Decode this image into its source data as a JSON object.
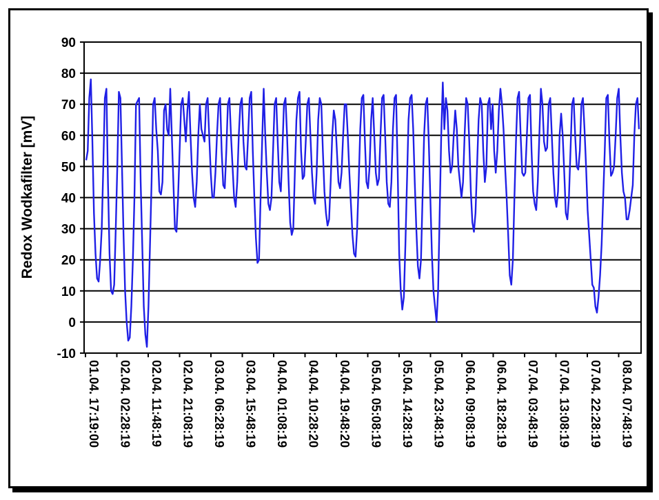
{
  "chart_data": {
    "type": "line",
    "title": "",
    "xlabel": "",
    "ylabel": "Redox Wodkafilter [mV]",
    "ylim": [
      -10,
      90
    ],
    "yticks": [
      -10,
      0,
      10,
      20,
      30,
      40,
      50,
      60,
      70,
      80,
      90
    ],
    "grid": true,
    "legend": "none",
    "colors": {
      "line": "#1f1fe6",
      "grid": "#000000",
      "frame": "#000000"
    },
    "x_tick_labels": [
      "01.04. 17:19:00",
      "02.04. 02:28:19",
      "02.04. 11:48:19",
      "02.04. 21:08:19",
      "03.04. 06:28:19",
      "03.04. 15:48:19",
      "04.04. 01:08:19",
      "04.04. 10:28:20",
      "04.04. 19:48:20",
      "05.04. 05:08:19",
      "05.04. 14:28:19",
      "05.04. 23:48:19",
      "06.04. 09:08:19",
      "06.04. 18:28:19",
      "07.04. 03:48:19",
      "07.04. 13:08:19",
      "07.04. 22:28:19",
      "08.04. 07:48:19"
    ],
    "series": [
      {
        "values": [
          52,
          55,
          72,
          78,
          58,
          35,
          22,
          14,
          13,
          20,
          30,
          50,
          72,
          75,
          45,
          22,
          10,
          9,
          12,
          30,
          50,
          74,
          72,
          50,
          28,
          10,
          0,
          -6,
          -5,
          5,
          20,
          40,
          70,
          71,
          72,
          45,
          25,
          5,
          -4,
          -8,
          5,
          25,
          45,
          70,
          72,
          62,
          55,
          42,
          41,
          45,
          68,
          70,
          62,
          60,
          75,
          60,
          45,
          30,
          29,
          40,
          55,
          70,
          72,
          65,
          58,
          68,
          74,
          60,
          48,
          40,
          37,
          45,
          60,
          70,
          62,
          60,
          58,
          70,
          72,
          60,
          48,
          40,
          40,
          48,
          60,
          70,
          72,
          55,
          44,
          43,
          55,
          70,
          72,
          60,
          50,
          40,
          37,
          45,
          60,
          70,
          72,
          58,
          50,
          49,
          60,
          72,
          74,
          55,
          40,
          27,
          19,
          20,
          40,
          58,
          75,
          60,
          48,
          38,
          36,
          40,
          55,
          70,
          72,
          58,
          45,
          42,
          55,
          70,
          72,
          60,
          45,
          32,
          28,
          30,
          48,
          65,
          72,
          74,
          55,
          46,
          47,
          58,
          70,
          72,
          60,
          48,
          40,
          38,
          48,
          65,
          72,
          70,
          55,
          42,
          35,
          31,
          33,
          45,
          60,
          68,
          65,
          55,
          45,
          43,
          48,
          60,
          70,
          70,
          60,
          48,
          38,
          28,
          22,
          21,
          30,
          45,
          62,
          72,
          73,
          58,
          45,
          43,
          50,
          65,
          72,
          60,
          48,
          44,
          46,
          60,
          72,
          73,
          60,
          45,
          38,
          37,
          45,
          62,
          72,
          73,
          50,
          22,
          10,
          4,
          8,
          25,
          45,
          65,
          72,
          73,
          62,
          45,
          30,
          18,
          14,
          20,
          40,
          60,
          70,
          72,
          58,
          40,
          22,
          10,
          5,
          0,
          10,
          35,
          60,
          77,
          62,
          72,
          68,
          55,
          48,
          50,
          60,
          68,
          62,
          50,
          45,
          40,
          45,
          60,
          72,
          70,
          58,
          42,
          32,
          29,
          35,
          50,
          65,
          72,
          70,
          55,
          45,
          50,
          70,
          72,
          62,
          70,
          55,
          48,
          55,
          68,
          75,
          70,
          62,
          50,
          40,
          28,
          15,
          12,
          20,
          40,
          58,
          72,
          74,
          60,
          48,
          47,
          48,
          60,
          72,
          73,
          55,
          42,
          38,
          36,
          45,
          60,
          75,
          70,
          58,
          55,
          56,
          70,
          72,
          60,
          48,
          40,
          37,
          42,
          60,
          67,
          60,
          48,
          35,
          33,
          40,
          55,
          70,
          72,
          60,
          50,
          49,
          55,
          70,
          72,
          62,
          50,
          36,
          28,
          20,
          12,
          11,
          5,
          3,
          8,
          15,
          25,
          40,
          55,
          72,
          73,
          58,
          47,
          48,
          50,
          60,
          72,
          75,
          60,
          48,
          42,
          40,
          33,
          33,
          36,
          40,
          44,
          60,
          70,
          72,
          62
        ]
      }
    ]
  }
}
